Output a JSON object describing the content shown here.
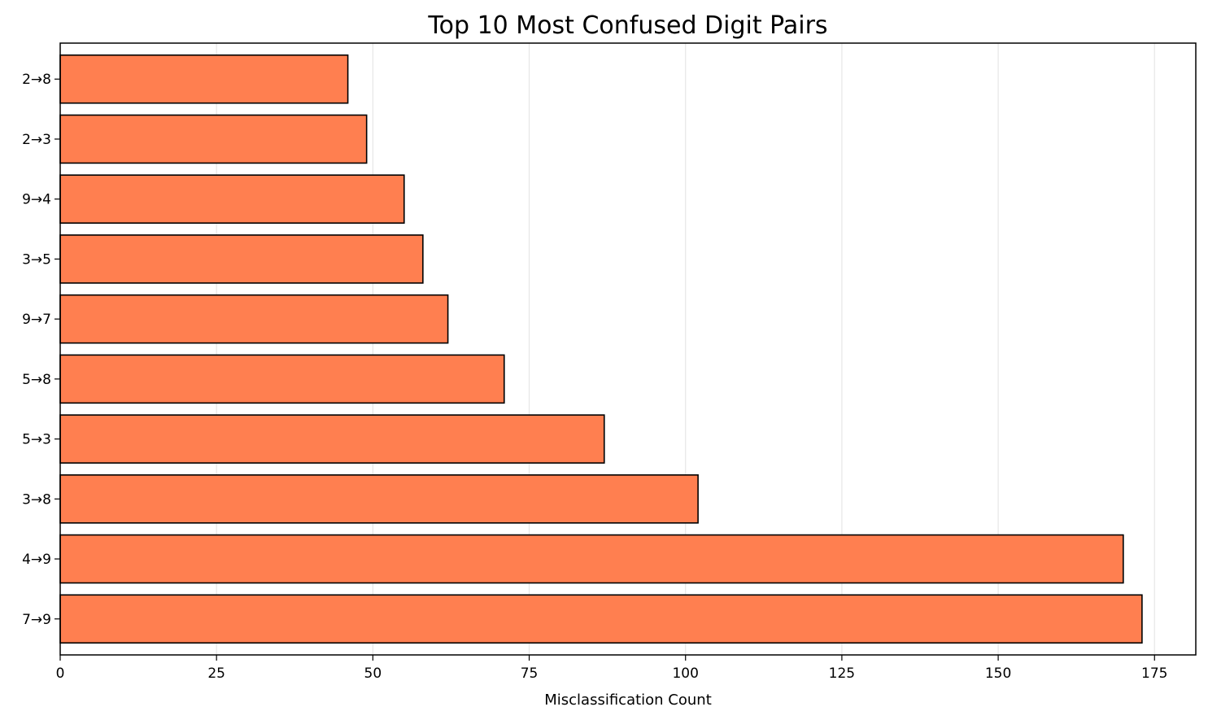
{
  "chart_data": {
    "type": "bar",
    "orientation": "horizontal",
    "title": "Top 10 Most Confused Digit Pairs",
    "xlabel": "Misclassification Count",
    "ylabel": "",
    "categories": [
      "7→9",
      "4→9",
      "3→8",
      "5→3",
      "5→8",
      "9→7",
      "3→5",
      "9→4",
      "2→3",
      "2→8"
    ],
    "values": [
      173,
      170,
      102,
      87,
      71,
      62,
      58,
      55,
      49,
      46
    ],
    "xlim": [
      0,
      181.6
    ],
    "xticks": [
      0,
      25,
      50,
      75,
      100,
      125,
      150,
      175
    ],
    "xtick_labels": [
      "0",
      "25",
      "50",
      "75",
      "100",
      "125",
      "150",
      "175"
    ],
    "grid": "x-axis vertical lines",
    "bar_color": "#ff7f50",
    "bar_edge_color": "#000000",
    "grid_color": "#e6e6e6"
  }
}
